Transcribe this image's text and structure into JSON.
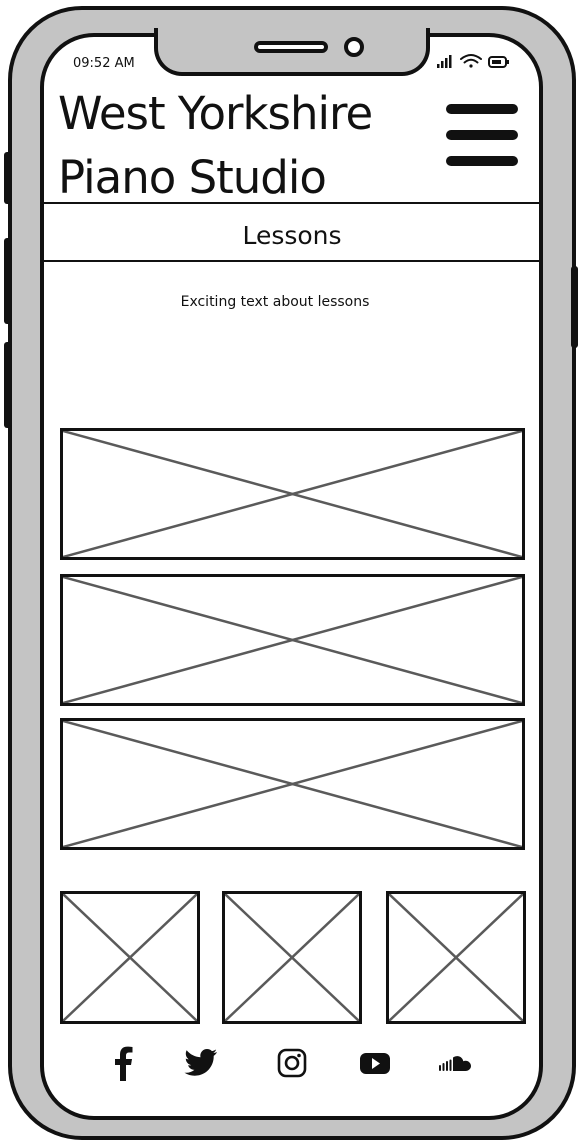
{
  "status_bar": {
    "time": "09:52 AM",
    "icons": [
      "signal-icon",
      "wifi-icon",
      "battery-icon"
    ]
  },
  "header": {
    "title": "West Yorkshire Piano Studio",
    "menu_icon": "hamburger-menu-icon"
  },
  "page": {
    "heading": "Lessons",
    "intro": "Exciting text about lessons"
  },
  "gallery": {
    "wide_images": [
      "image-placeholder",
      "image-placeholder",
      "image-placeholder"
    ],
    "thumbnails": [
      "image-placeholder",
      "image-placeholder",
      "image-placeholder"
    ]
  },
  "footer": {
    "social_icons": [
      "facebook-icon",
      "twitter-icon",
      "instagram-icon",
      "youtube-icon",
      "soundcloud-icon"
    ]
  },
  "colors": {
    "ink": "#111111",
    "frame": "#c4c4c4",
    "placeholder_cross": "#5a5a5a"
  }
}
